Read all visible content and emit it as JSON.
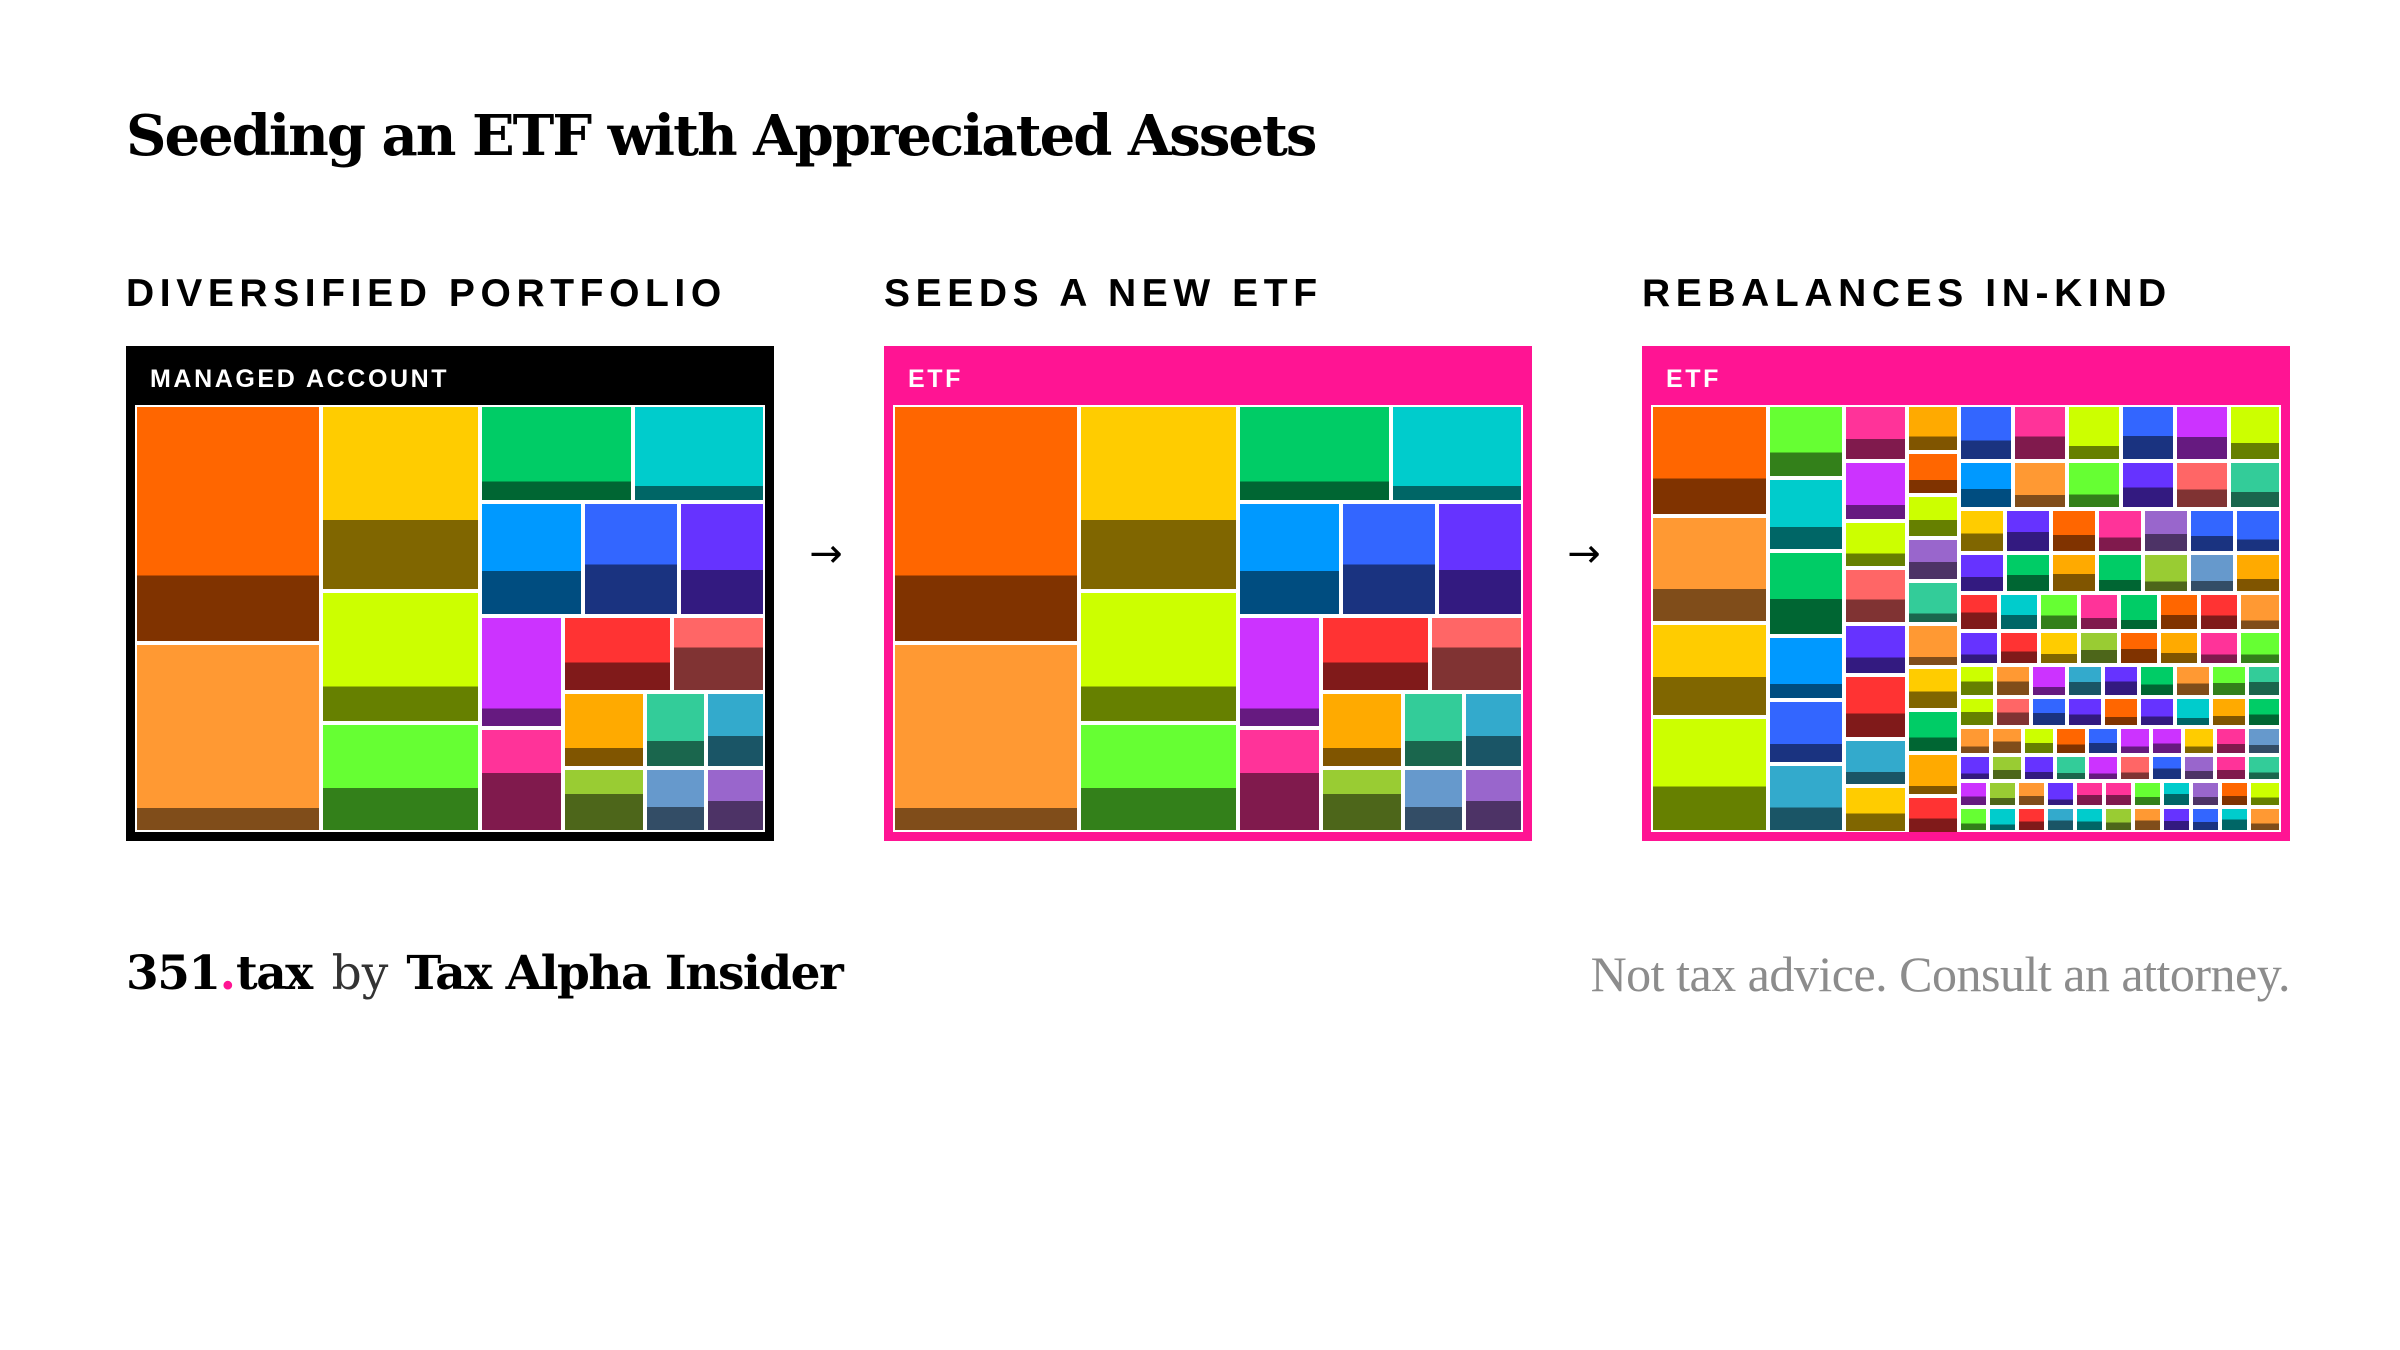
{
  "title": "Seeding an ETF with Appreciated Assets",
  "panels": [
    {
      "label": "DIVERSIFIED PORTFOLIO",
      "container_label": "MANAGED ACCOUNT",
      "frame_color": "#000000"
    },
    {
      "label": "SEEDS A NEW ETF",
      "container_label": "ETF",
      "frame_color": "#ff1493"
    },
    {
      "label": "REBALANCES IN-KIND",
      "container_label": "ETF",
      "frame_color": "#ff1493"
    }
  ],
  "arrows": [
    "→",
    "→"
  ],
  "footer": {
    "brand_number": "351",
    "brand_dot": ".",
    "brand_suffix": "tax",
    "by": "by",
    "publisher": "Tax Alpha Insider",
    "disclaimer": "Not tax advice. Consult an attorney."
  },
  "colors": {
    "accent": "#ff1493",
    "palette_large": [
      "#ff6600",
      "#ff9933",
      "#ffcc00",
      "#ccff00",
      "#66ff33",
      "#00cc66",
      "#00cccc",
      "#0099ff",
      "#3366ff",
      "#6633ff",
      "#cc33ff",
      "#ff3333",
      "#ff6666",
      "#ff3399",
      "#ffaa00",
      "#33cc99",
      "#33aacc",
      "#99cc33",
      "#6699cc",
      "#9966cc"
    ]
  }
}
